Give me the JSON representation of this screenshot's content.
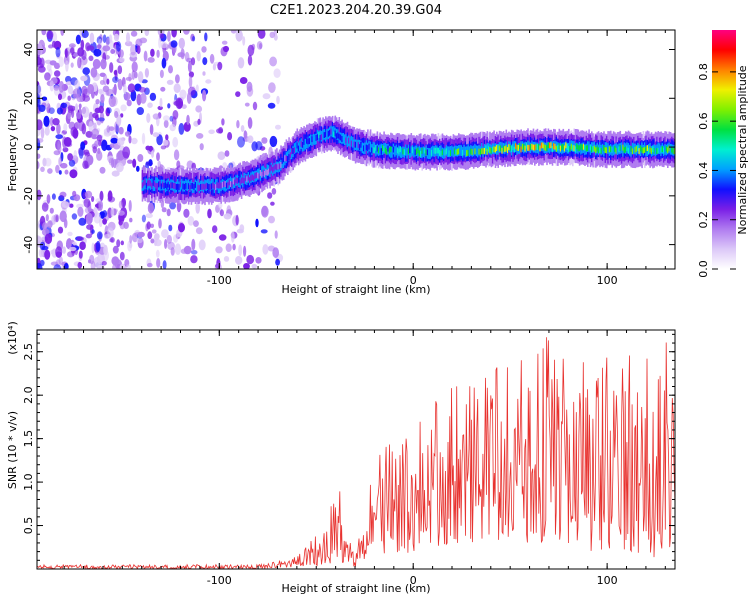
{
  "title": "C2E1.2023.204.20.39.G04",
  "colors": {
    "snr_line": "#e8322f",
    "frame": "#000000",
    "colormap": [
      "#ffffff",
      "#dcc8f8",
      "#b07cf0",
      "#7a1fe6",
      "#1010ff",
      "#00a0ff",
      "#00f0d0",
      "#00e040",
      "#80f000",
      "#f0f000",
      "#ff8000",
      "#ff0000",
      "#ff0080"
    ]
  },
  "chart_data": [
    {
      "type": "heatmap",
      "xlabel": "Height of straight line (km)",
      "ylabel": "Frequency (Hz)",
      "xlim": [
        -194,
        135
      ],
      "ylim": [
        -50,
        48
      ],
      "xticks": [
        -100,
        0,
        100
      ],
      "yticks": [
        -40,
        -20,
        0,
        20,
        40
      ],
      "colorbar": {
        "label": "Normalized spectral amplitude",
        "range": [
          0.0,
          0.97
        ],
        "ticks": [
          0.0,
          0.2,
          0.4,
          0.6,
          0.8
        ]
      },
      "ridge": {
        "description_free": true,
        "x": [
          -140,
          -120,
          -100,
          -85,
          -70,
          -60,
          -50,
          -42,
          -30,
          -20,
          0,
          20,
          40,
          60,
          80,
          100,
          120,
          135
        ],
        "frequency": [
          -15,
          -16,
          -16,
          -13,
          -8,
          0,
          4,
          6,
          1,
          -1,
          -2,
          -2,
          -1,
          0,
          0,
          -1,
          -1,
          -1
        ],
        "peak_amplitude": [
          0.35,
          0.4,
          0.35,
          0.3,
          0.3,
          0.45,
          0.5,
          0.5,
          0.4,
          0.6,
          0.6,
          0.65,
          0.75,
          0.9,
          0.85,
          0.7,
          0.75,
          0.7
        ]
      }
    },
    {
      "type": "line",
      "xlabel": "Height of straight line (km)",
      "ylabel": "SNR (10 * v/v)",
      "scale_label": "(x10⁴)",
      "xlim": [
        -194,
        135
      ],
      "ylim": [
        0,
        2.75
      ],
      "xticks": [
        -100,
        0,
        100
      ],
      "yticks": [
        0.5,
        1.0,
        1.5,
        2.0,
        2.5
      ],
      "ytick_labels": [
        "0.5",
        "1.0",
        "1.5",
        "2.0",
        "2.5"
      ],
      "envelope": {
        "x": [
          -194,
          -120,
          -80,
          -60,
          -45,
          -38,
          -35,
          -30,
          -25,
          -20,
          -10,
          0,
          20,
          40,
          60,
          65,
          80,
          100,
          120,
          130,
          135
        ],
        "ymax": [
          0.05,
          0.05,
          0.05,
          0.15,
          0.55,
          1.1,
          0.45,
          0.2,
          0.6,
          1.3,
          1.5,
          1.7,
          2.2,
          2.3,
          2.6,
          2.75,
          2.55,
          2.55,
          2.55,
          2.65,
          2.65
        ],
        "ymin": [
          0.0,
          0.0,
          0.0,
          0.02,
          0.05,
          0.1,
          0.05,
          0.02,
          0.1,
          0.2,
          0.15,
          0.2,
          0.3,
          0.3,
          0.3,
          0.3,
          0.2,
          0.2,
          0.15,
          0.1,
          0.1
        ]
      }
    }
  ]
}
